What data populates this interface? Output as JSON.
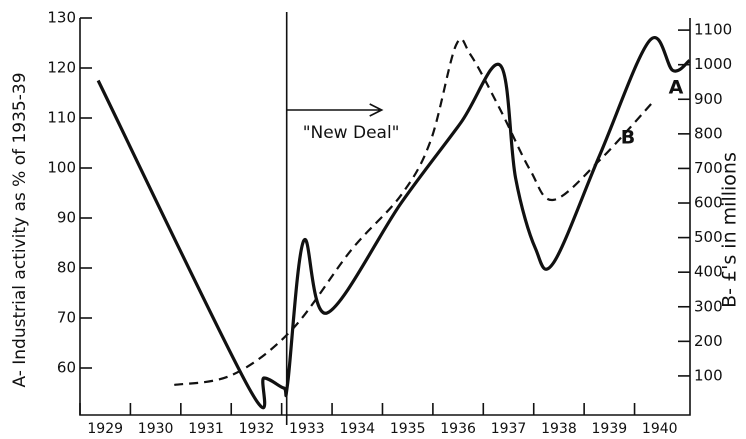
{
  "chart_data": {
    "type": "line",
    "ylabel": "A- Industrial activity as % of 1935-39",
    "y2label": "B- £'s in millions",
    "annotations": [
      {
        "text": "\"New Deal\"",
        "x": 1933.1
      }
    ],
    "xlim": [
      1929,
      1941.1
    ],
    "xticks": [
      1929,
      1930,
      1931,
      1932,
      1933,
      1934,
      1935,
      1936,
      1937,
      1938,
      1939,
      1940
    ],
    "ylim": [
      50.6,
      130
    ],
    "yticks": [
      60,
      70,
      80,
      90,
      100,
      110,
      120,
      130
    ],
    "y2lim": [
      -13,
      1135
    ],
    "y2ticks": [
      100,
      200,
      300,
      400,
      500,
      600,
      700,
      800,
      900,
      1000,
      1100
    ],
    "series": [
      {
        "name": "A",
        "color": "#111111",
        "dashed": false,
        "x": [
          1929.36,
          1932.35,
          1932.65,
          1933.04,
          1933.12,
          1933.44,
          1933.9,
          1935.37,
          1936.55,
          1937.34,
          1937.64,
          1938.03,
          1938.39,
          1939.31,
          1940.3,
          1940.76,
          1941.09
        ],
        "values": [
          117.5,
          56,
          58,
          56,
          57,
          85.5,
          71,
          93,
          109,
          120.5,
          98,
          84,
          81,
          102.6,
          125.5,
          119.5,
          121.5
        ]
      },
      {
        "name": "B",
        "color": "#111111",
        "dashed": true,
        "axis": "y2",
        "x": [
          1930.87,
          1932.02,
          1933.2,
          1934.38,
          1935.37,
          1935.96,
          1936.46,
          1936.75,
          1937.34,
          1937.93,
          1938.39,
          1939.31,
          1940.4
        ],
        "values": [
          74,
          103,
          233,
          464,
          623,
          782,
          1057,
          1028,
          869,
          695,
          609,
          724,
          898
        ]
      }
    ]
  }
}
